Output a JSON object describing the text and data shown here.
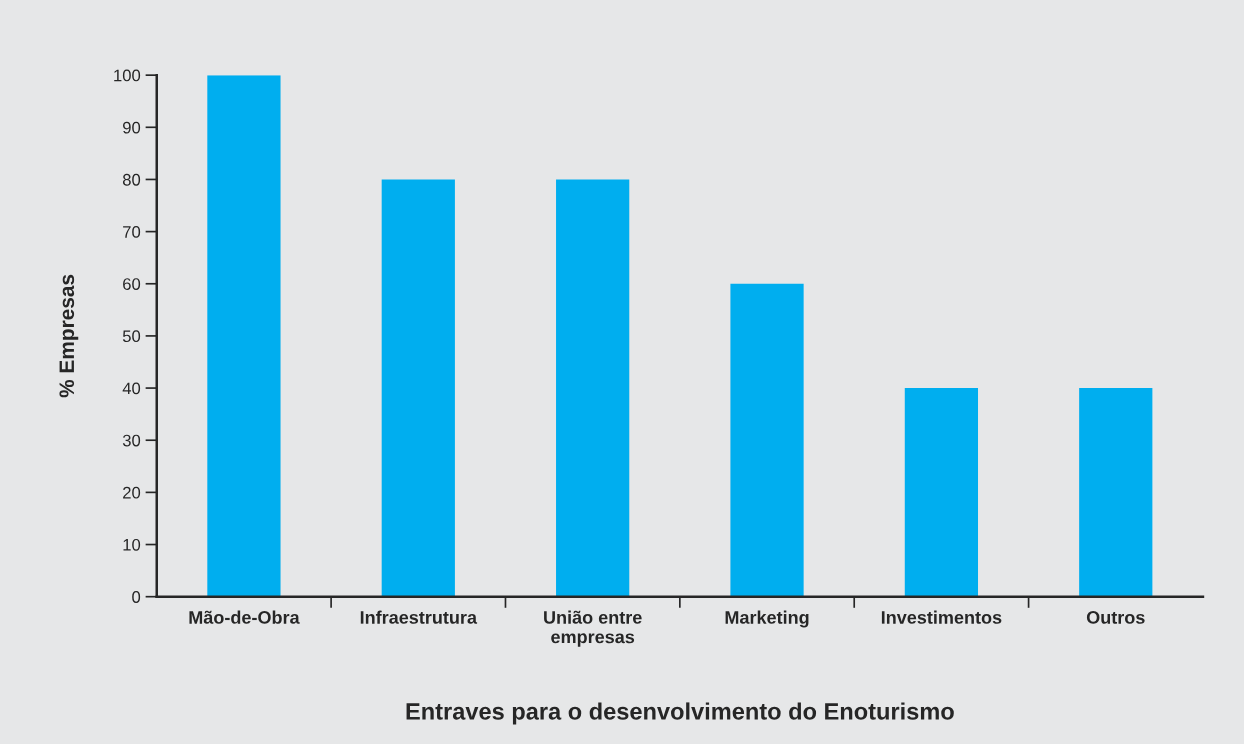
{
  "chart_data": {
    "type": "bar",
    "xlabel": "Entraves para o desenvolvimento do Enoturismo",
    "ylabel": "% Empresas",
    "categories": [
      "Mão-de-Obra",
      "Infraestrutura",
      "União entre\nempresas",
      "Marketing",
      "Investimentos",
      "Outros"
    ],
    "values": [
      100,
      80,
      80,
      60,
      40,
      40
    ],
    "color": "#00aeef",
    "ylim": [
      0,
      100
    ],
    "yticks": [
      0,
      10,
      20,
      30,
      40,
      50,
      60,
      70,
      80,
      90,
      100
    ],
    "grid": false
  }
}
